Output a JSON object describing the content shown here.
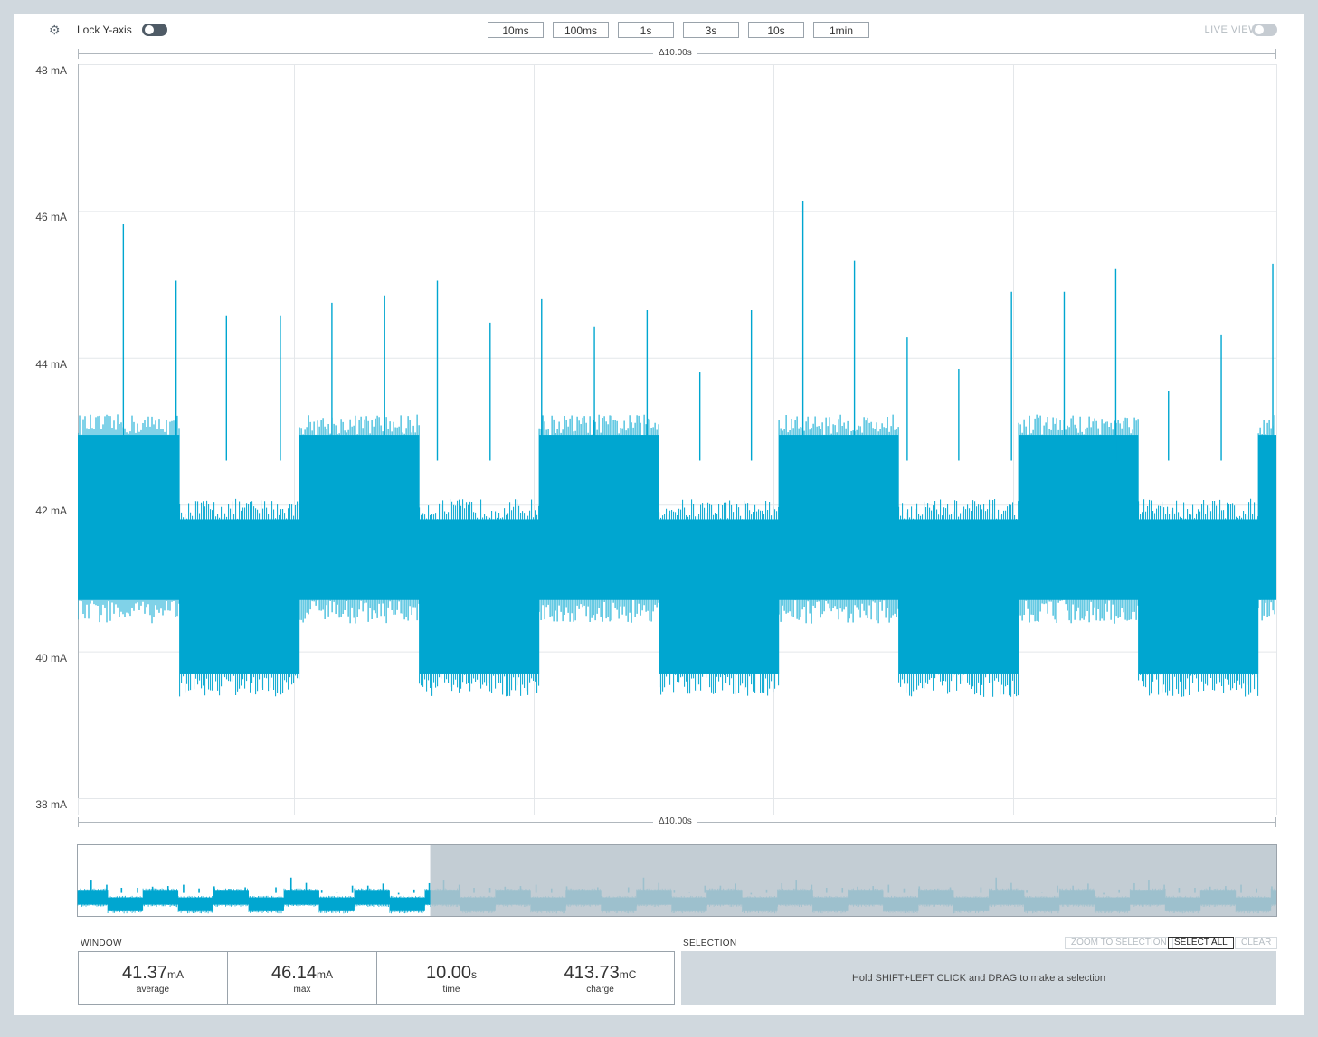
{
  "toolbar": {
    "lock_label": "Lock Y-axis",
    "lock_on": false,
    "time_buttons": [
      "10ms",
      "100ms",
      "1s",
      "3s",
      "10s",
      "1min"
    ],
    "live_label": "LIVE VIEW",
    "live_on": false
  },
  "range": {
    "delta_top": "Δ10.00s",
    "delta_bottom": "Δ10.00s"
  },
  "colors": {
    "trace": "#00a6d0",
    "minimap_shade": "#b8c4cc",
    "grid": "#e4e7ea",
    "toggle_dark": "#4f5b66"
  },
  "chart_data": {
    "type": "line",
    "ylabel": "",
    "unit": "mA",
    "ylim": [
      38,
      48
    ],
    "y_ticks": [
      "48 mA",
      "46 mA",
      "44 mA",
      "42 mA",
      "40 mA",
      "38 mA"
    ],
    "x_range_s": [
      0,
      10
    ],
    "grid": true,
    "series": [
      {
        "segments": [
          {
            "t0": 0.0,
            "t1": 0.85,
            "low": 40.7,
            "high": 42.95
          },
          {
            "t0": 0.85,
            "t1": 1.85,
            "low": 39.7,
            "high": 41.8
          },
          {
            "t0": 1.85,
            "t1": 2.85,
            "low": 40.7,
            "high": 42.95
          },
          {
            "t0": 2.85,
            "t1": 3.85,
            "low": 39.7,
            "high": 41.8
          },
          {
            "t0": 3.85,
            "t1": 4.85,
            "low": 40.7,
            "high": 42.95
          },
          {
            "t0": 4.85,
            "t1": 5.85,
            "low": 39.7,
            "high": 41.8
          },
          {
            "t0": 5.85,
            "t1": 6.85,
            "low": 40.7,
            "high": 42.95
          },
          {
            "t0": 6.85,
            "t1": 7.85,
            "low": 39.7,
            "high": 41.8
          },
          {
            "t0": 7.85,
            "t1": 8.85,
            "low": 40.7,
            "high": 42.95
          },
          {
            "t0": 8.85,
            "t1": 9.85,
            "low": 39.7,
            "high": 41.8
          },
          {
            "t0": 9.85,
            "t1": 10.0,
            "low": 40.7,
            "high": 42.95
          }
        ],
        "spikes": [
          {
            "t": 0.38,
            "v": 45.82
          },
          {
            "t": 0.82,
            "v": 45.05
          },
          {
            "t": 1.24,
            "v": 44.58
          },
          {
            "t": 1.69,
            "v": 44.58
          },
          {
            "t": 2.12,
            "v": 44.75
          },
          {
            "t": 2.56,
            "v": 44.85
          },
          {
            "t": 3.0,
            "v": 45.05
          },
          {
            "t": 3.44,
            "v": 44.48
          },
          {
            "t": 3.87,
            "v": 44.8
          },
          {
            "t": 4.31,
            "v": 44.42
          },
          {
            "t": 4.75,
            "v": 44.65
          },
          {
            "t": 5.19,
            "v": 43.8
          },
          {
            "t": 5.62,
            "v": 44.65
          },
          {
            "t": 6.05,
            "v": 46.14
          },
          {
            "t": 6.48,
            "v": 45.32
          },
          {
            "t": 6.92,
            "v": 44.28
          },
          {
            "t": 7.35,
            "v": 43.85
          },
          {
            "t": 7.79,
            "v": 44.9
          },
          {
            "t": 8.23,
            "v": 44.9
          },
          {
            "t": 8.66,
            "v": 45.22
          },
          {
            "t": 9.1,
            "v": 43.55
          },
          {
            "t": 9.54,
            "v": 44.32
          },
          {
            "t": 9.97,
            "v": 45.28
          }
        ]
      }
    ]
  },
  "minimap": {
    "window_start_frac": 0.0,
    "window_end_frac": 0.294
  },
  "window": {
    "title": "WINDOW",
    "stats": [
      {
        "value": "41.37",
        "unit": "mA",
        "label": "average"
      },
      {
        "value": "46.14",
        "unit": "mA",
        "label": "max"
      },
      {
        "value": "10.00",
        "unit": "s",
        "label": "time"
      },
      {
        "value": "413.73",
        "unit": "mC",
        "label": "charge"
      }
    ]
  },
  "selection": {
    "title": "SELECTION",
    "zoom_label": "ZOOM TO SELECTION",
    "select_all_label": "SELECT ALL",
    "clear_label": "CLEAR",
    "hint": "Hold SHIFT+LEFT CLICK and DRAG to make a selection"
  }
}
